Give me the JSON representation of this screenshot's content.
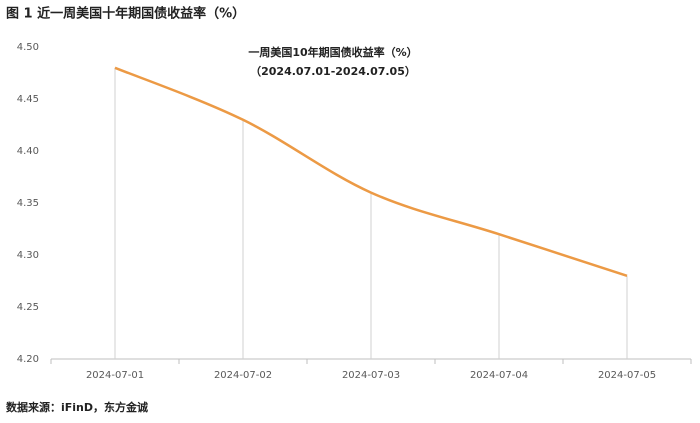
{
  "chart_data": {
    "type": "line",
    "figure_title": "图 1  近一周美国十年期国债收益率（%）",
    "title": "一周美国10年期国债收益率（%）",
    "subtitle": "（2024.07.01-2024.07.05）",
    "source": "数据来源：iFinD，东方金诚",
    "categories": [
      "2024-07-01",
      "2024-07-02",
      "2024-07-03",
      "2024-07-04",
      "2024-07-05"
    ],
    "values": [
      4.48,
      4.43,
      4.36,
      4.32,
      4.28
    ],
    "color": "#ec9a45",
    "ylim": [
      4.2,
      4.5
    ],
    "yticks": [
      {
        "value": 4.2,
        "label": "4.20"
      },
      4.25,
      {
        "value": 4.3,
        "label": "4.30"
      },
      4.35,
      {
        "value": 4.4,
        "label": "4.40"
      },
      4.45,
      {
        "value": 4.5,
        "label": "4.50"
      }
    ],
    "grid": false
  }
}
